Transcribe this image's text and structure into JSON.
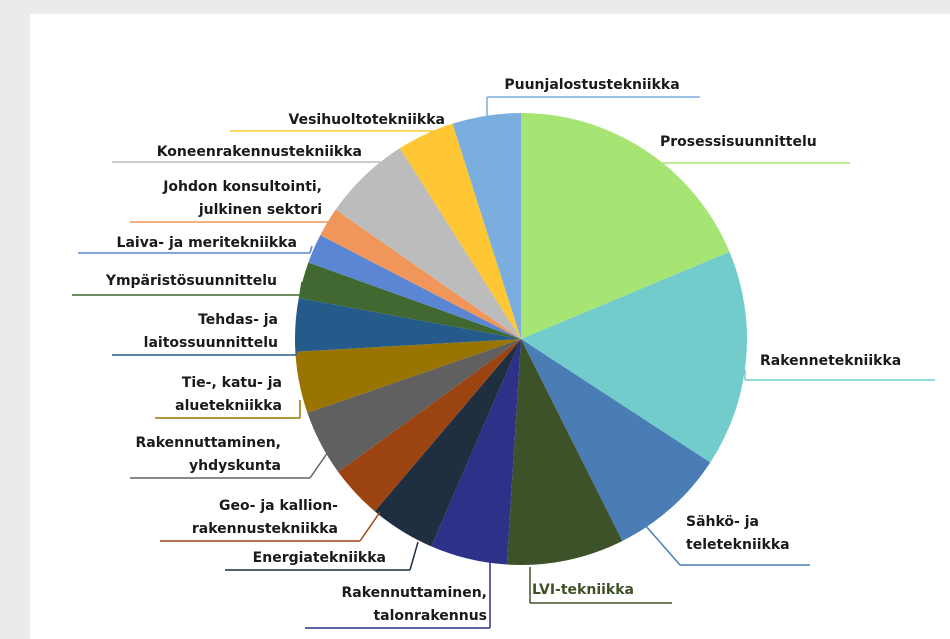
{
  "chart_data": {
    "type": "pie",
    "categories": [
      "Prosessisuunnittelu",
      "Rakennetekniikka",
      [
        "Sähkö- ja",
        "teletekniikka"
      ],
      "LVI-tekniikka",
      [
        "Rakennuttaminen,",
        "talonrakennus"
      ],
      "Energiatekniikka",
      [
        "Geo- ja kallion-",
        "rakennustekniikka"
      ],
      [
        "Rakennuttaminen,",
        "yhdyskunta"
      ],
      [
        "Tie-, katu- ja",
        "aluetekniikka"
      ],
      [
        "Tehdas- ja",
        "laitossuunnittelu"
      ],
      "Ympäristösuunnittelu",
      "Laiva- ja meritekniikka",
      [
        "Johdon konsultointi,",
        "julkinen sektori"
      ],
      "Koneenrakennustekniikka",
      "Vesihuoltotekniikka",
      "Puunjalostustekniikka"
    ],
    "values": [
      18.7,
      15.5,
      8.4,
      8.4,
      5.5,
      4.7,
      3.8,
      4.7,
      4.4,
      3.8,
      2.6,
      2.1,
      2.1,
      6.3,
      4.1,
      4.9
    ],
    "colors": [
      "#a6e574",
      "#72cccc",
      "#4a7db5",
      "#3d5229",
      "#2e3188",
      "#1f2f40",
      "#9c4411",
      "#606060",
      "#9a7400",
      "#255b8b",
      "#406830",
      "#5b86d3",
      "#f0965a",
      "#bcbcbc",
      "#ffc733",
      "#79aede"
    ]
  }
}
